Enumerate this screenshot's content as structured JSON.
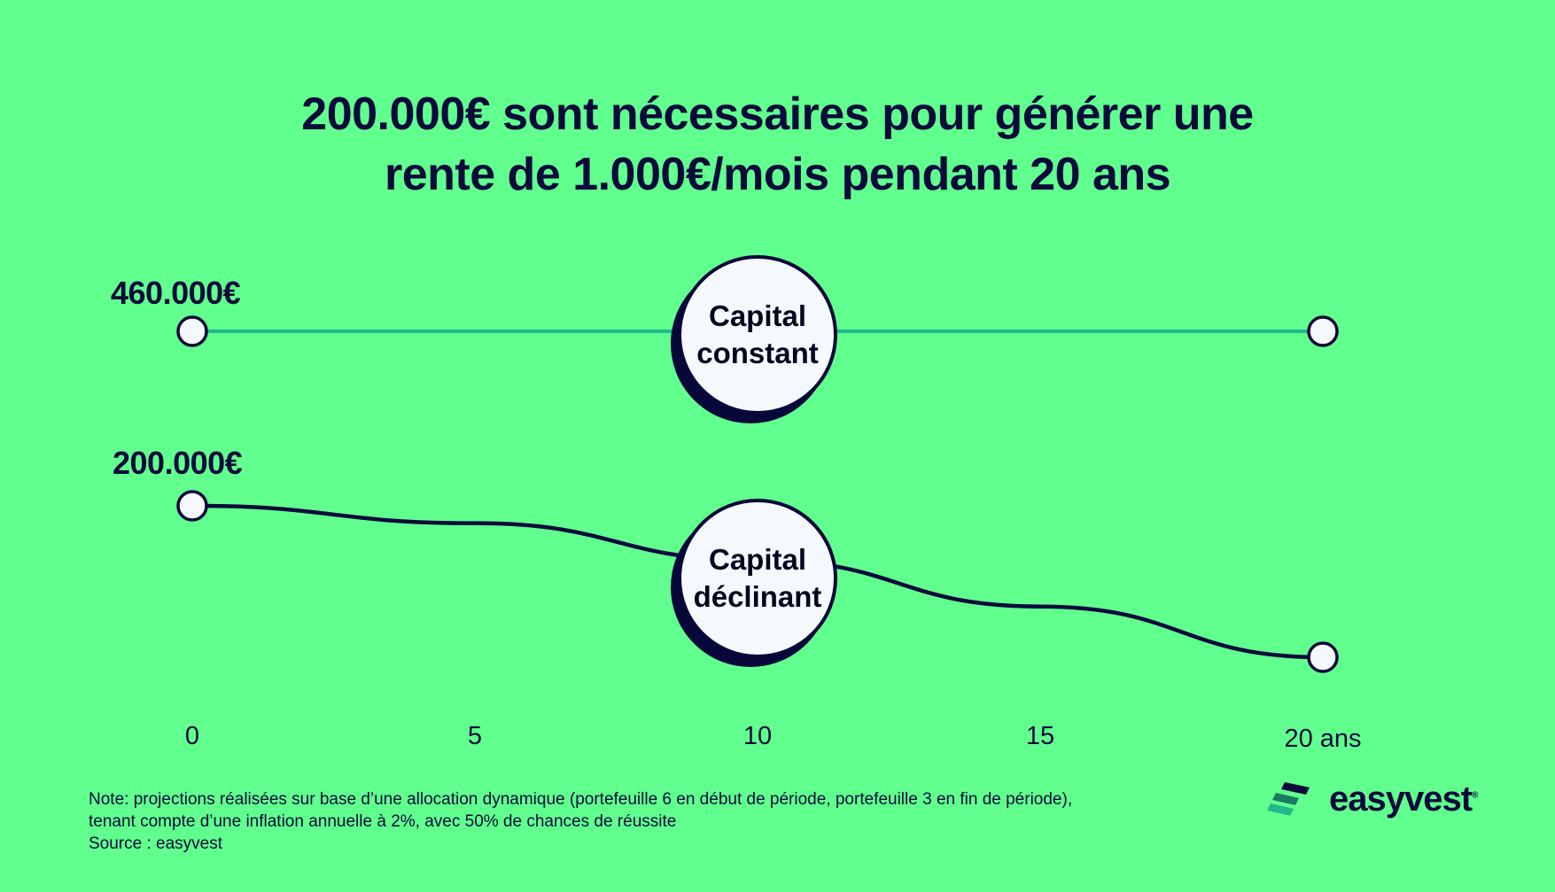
{
  "title": {
    "line1": "200.000€ sont nécessaires pour générer une",
    "line2": "rente de 1.000€/mois pendant 20 ans"
  },
  "chart_data": {
    "type": "line",
    "x": [
      0,
      5,
      10,
      15,
      20
    ],
    "xtick_labels": [
      "0",
      "5",
      "10",
      "15",
      "20 ans"
    ],
    "series": [
      {
        "name": "Capital constant",
        "label_lines": [
          "Capital",
          "constant"
        ],
        "start_label": "460.000€",
        "values": [
          460000,
          460000,
          460000,
          460000,
          460000
        ],
        "color": "#1fb98a"
      },
      {
        "name": "Capital déclinant",
        "label_lines": [
          "Capital",
          "déclinant"
        ],
        "start_label": "200.000€",
        "values": [
          200000,
          177000,
          128000,
          67000,
          0
        ],
        "color": "#0b0b3b"
      }
    ],
    "xlim": [
      0,
      20
    ]
  },
  "note": {
    "line1": "Note: projections réalisées sur base d’une allocation dynamique (portefeuille 6 en début de période, portefeuille 3 en fin de période),",
    "line2": "tenant compte d’une inflation annuelle à 2%, avec 50% de chances de réussite",
    "line3": "Source : easyvest"
  },
  "logo": {
    "text": "easyvest",
    "mark": "®"
  }
}
